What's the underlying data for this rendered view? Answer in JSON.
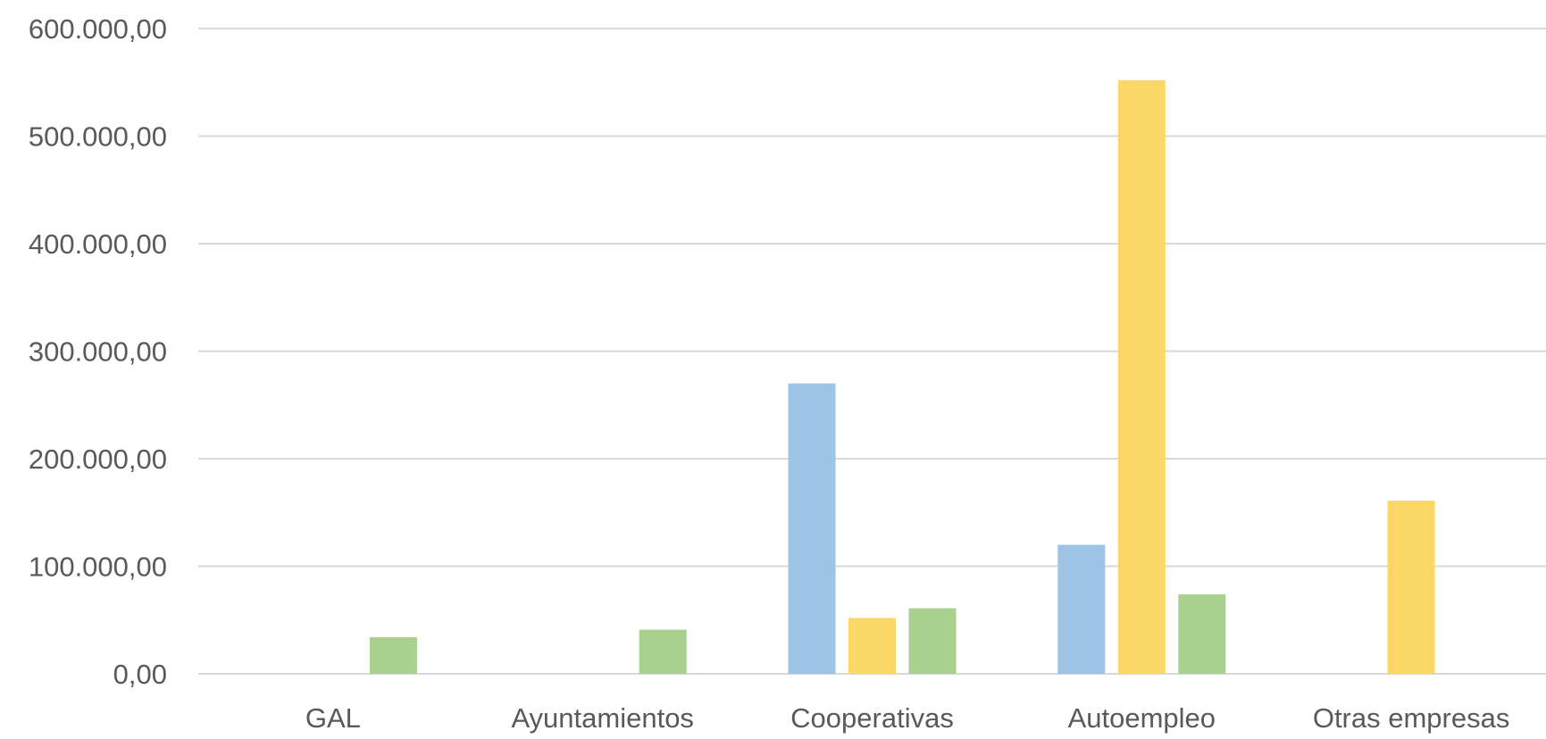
{
  "chart_data": {
    "type": "bar",
    "title": "",
    "xlabel": "",
    "ylabel": "",
    "categories": [
      "GAL",
      "Ayuntamientos",
      "Cooperativas",
      "Autoempleo",
      "Otras empresas"
    ],
    "series": [
      {
        "color": "#9dc3e6",
        "values": [
          0,
          0,
          270000,
          120000,
          0
        ]
      },
      {
        "color": "#fad766",
        "values": [
          0,
          0,
          52000,
          552000,
          161000
        ]
      },
      {
        "color": "#a9d18e",
        "values": [
          34000,
          41000,
          61000,
          74000,
          0
        ]
      }
    ],
    "ylim": [
      0,
      600000
    ],
    "yticks": [
      0,
      100000,
      200000,
      300000,
      400000,
      500000,
      600000
    ],
    "ytick_labels": [
      "0,00",
      "100.000,00",
      "200.000,00",
      "300.000,00",
      "400.000,00",
      "500.000,00",
      "600.000,00"
    ],
    "grid": true,
    "legend": "none",
    "gridline_color": "#d9d9d9",
    "axis_line_color": "#d9d9d9",
    "text_color": "#595959"
  }
}
